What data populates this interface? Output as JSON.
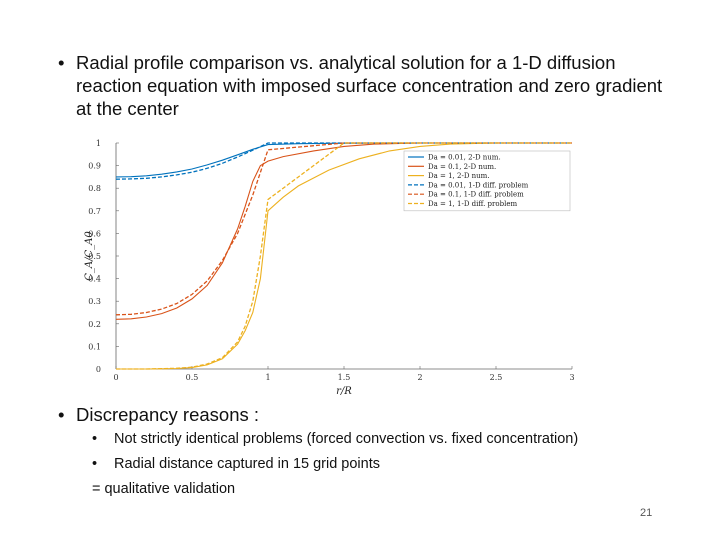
{
  "bullets": {
    "main1": "Radial profile comparison vs. analytical solution for a 1-D diffusion reaction equation with imposed surface concentration and zero gradient at the center",
    "main2": "Discrepancy reasons :",
    "sub1": "Not strictly identical problems (forced convection vs. fixed concentration)",
    "sub2": "Radial distance captured in 15 grid points",
    "qualitative": "= qualitative validation",
    "bullet_symbol": "•"
  },
  "page_number": "21",
  "chart_data": {
    "type": "line",
    "xlabel": "r/R",
    "ylabel": "C_A/C_A0",
    "xlim": [
      0,
      3
    ],
    "ylim": [
      0,
      1
    ],
    "xticks": [
      "0",
      "0.5",
      "1",
      "1.5",
      "2",
      "2.5",
      "3"
    ],
    "yticks": [
      "0",
      "0.1",
      "0.2",
      "0.3",
      "0.4",
      "0.5",
      "0.6",
      "0.7",
      "0.8",
      "0.9",
      "1"
    ],
    "grid": false,
    "legend_position": "top-right",
    "series": [
      {
        "name": "Da = 0.01, 2-D num.",
        "color": "#0072bd",
        "dash": false,
        "x": [
          0,
          0.1,
          0.2,
          0.3,
          0.4,
          0.5,
          0.6,
          0.7,
          0.8,
          0.9,
          1.0,
          1.2,
          1.5,
          2.0,
          2.5,
          3.0
        ],
        "y": [
          0.85,
          0.851,
          0.855,
          0.862,
          0.872,
          0.885,
          0.903,
          0.924,
          0.948,
          0.972,
          0.993,
          0.997,
          0.999,
          1.0,
          1.0,
          1.0
        ]
      },
      {
        "name": "Da = 0.1, 2-D num.",
        "color": "#d95319",
        "dash": false,
        "x": [
          0,
          0.1,
          0.2,
          0.3,
          0.4,
          0.5,
          0.6,
          0.7,
          0.8,
          0.85,
          0.9,
          0.95,
          1.0,
          1.1,
          1.3,
          1.5,
          1.7,
          2.0,
          2.5,
          3.0
        ],
        "y": [
          0.22,
          0.222,
          0.23,
          0.245,
          0.27,
          0.31,
          0.37,
          0.47,
          0.62,
          0.72,
          0.83,
          0.9,
          0.92,
          0.94,
          0.965,
          0.985,
          0.995,
          1.0,
          1.0,
          1.0
        ]
      },
      {
        "name": "Da = 1, 2-D num.",
        "color": "#edb120",
        "dash": false,
        "x": [
          0,
          0.2,
          0.4,
          0.5,
          0.6,
          0.7,
          0.8,
          0.85,
          0.9,
          0.95,
          1.0,
          1.1,
          1.2,
          1.4,
          1.6,
          1.8,
          2.0,
          2.2,
          2.5,
          3.0
        ],
        "y": [
          0.0,
          0.0,
          0.002,
          0.006,
          0.018,
          0.045,
          0.11,
          0.17,
          0.25,
          0.4,
          0.7,
          0.76,
          0.81,
          0.88,
          0.93,
          0.965,
          0.985,
          0.995,
          1.0,
          1.0
        ]
      },
      {
        "name": "Da = 0.01, 1-D diff. problem",
        "color": "#0072bd",
        "dash": true,
        "x": [
          0,
          0.1,
          0.2,
          0.3,
          0.4,
          0.5,
          0.6,
          0.7,
          0.8,
          0.9,
          1.0,
          1.5,
          2.0,
          3.0
        ],
        "y": [
          0.84,
          0.841,
          0.844,
          0.85,
          0.859,
          0.871,
          0.888,
          0.91,
          0.938,
          0.968,
          1.0,
          1.0,
          1.0,
          1.0
        ]
      },
      {
        "name": "Da = 0.1, 1-D diff. problem",
        "color": "#d95319",
        "dash": true,
        "x": [
          0,
          0.1,
          0.2,
          0.3,
          0.4,
          0.5,
          0.6,
          0.7,
          0.8,
          0.9,
          1.0,
          1.5,
          2.0,
          3.0
        ],
        "y": [
          0.24,
          0.242,
          0.25,
          0.265,
          0.29,
          0.33,
          0.39,
          0.48,
          0.6,
          0.77,
          0.97,
          1.0,
          1.0,
          1.0
        ]
      },
      {
        "name": "Da = 1, 1-D diff. problem",
        "color": "#edb120",
        "dash": true,
        "x": [
          0,
          0.2,
          0.4,
          0.5,
          0.6,
          0.7,
          0.8,
          0.85,
          0.9,
          0.95,
          1.0,
          1.5,
          2.0,
          3.0
        ],
        "y": [
          0.0,
          0.0,
          0.003,
          0.008,
          0.022,
          0.05,
          0.12,
          0.19,
          0.3,
          0.5,
          0.75,
          1.0,
          1.0,
          1.0
        ]
      }
    ]
  }
}
